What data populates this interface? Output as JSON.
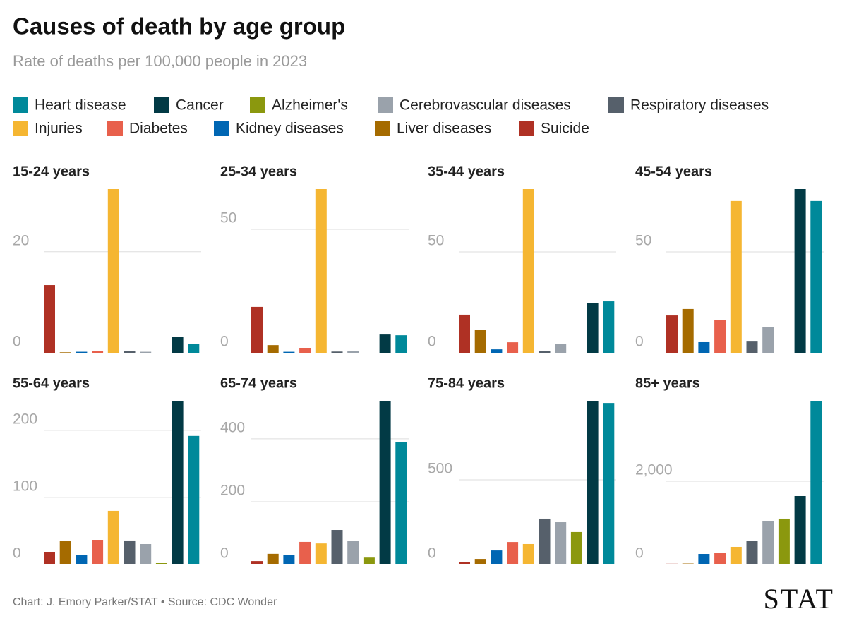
{
  "header": {
    "title": "Causes of death by age group",
    "subtitle": "Rate of deaths per 100,000 people in 2023"
  },
  "footer": {
    "credit": "Chart: J. Emory Parker/STAT • Source: CDC Wonder",
    "logo": "STAT"
  },
  "chart_data": [
    {
      "type": "bar",
      "title": "15-24 years",
      "ylim": [
        0,
        32.4
      ],
      "yticks": [
        0,
        20
      ],
      "grid": true,
      "series": [
        {
          "name": "Heart disease",
          "color": "#00899a",
          "values": [
            1.8
          ]
        },
        {
          "name": "Cancer",
          "color": "#023a45",
          "values": [
            3.2
          ]
        },
        {
          "name": "Alzheimer's",
          "color": "#8b980e",
          "values": [
            0
          ]
        },
        {
          "name": "Cerebrovascular diseases",
          "color": "#9aa2ab",
          "values": [
            0.2
          ]
        },
        {
          "name": "Respiratory diseases",
          "color": "#56606b",
          "values": [
            0.3
          ]
        },
        {
          "name": "Injuries",
          "color": "#f5b632",
          "values": [
            32.4
          ]
        },
        {
          "name": "Diabetes",
          "color": "#e8604c",
          "values": [
            0.4
          ]
        },
        {
          "name": "Kidney diseases",
          "color": "#0066b3",
          "values": [
            0.2
          ]
        },
        {
          "name": "Liver diseases",
          "color": "#a56b00",
          "values": [
            0.1
          ]
        },
        {
          "name": "Suicide",
          "color": "#af3124",
          "values": [
            13.4
          ]
        }
      ]
    },
    {
      "type": "bar",
      "title": "25-34 years",
      "ylim": [
        0,
        66.3
      ],
      "yticks": [
        0,
        50
      ],
      "grid": true,
      "series": [
        {
          "name": "Heart disease",
          "color": "#00899a",
          "values": [
            7.1
          ]
        },
        {
          "name": "Cancer",
          "color": "#023a45",
          "values": [
            7.4
          ]
        },
        {
          "name": "Alzheimer's",
          "color": "#8b980e",
          "values": [
            0
          ]
        },
        {
          "name": "Cerebrovascular diseases",
          "color": "#9aa2ab",
          "values": [
            0.7
          ]
        },
        {
          "name": "Respiratory diseases",
          "color": "#56606b",
          "values": [
            0.5
          ]
        },
        {
          "name": "Injuries",
          "color": "#f5b632",
          "values": [
            66.3
          ]
        },
        {
          "name": "Diabetes",
          "color": "#e8604c",
          "values": [
            2.0
          ]
        },
        {
          "name": "Kidney diseases",
          "color": "#0066b3",
          "values": [
            0.4
          ]
        },
        {
          "name": "Liver diseases",
          "color": "#a56b00",
          "values": [
            3.1
          ]
        },
        {
          "name": "Suicide",
          "color": "#af3124",
          "values": [
            18.6
          ]
        }
      ]
    },
    {
      "type": "bar",
      "title": "35-44 years",
      "ylim": [
        0,
        81.1
      ],
      "yticks": [
        0,
        50
      ],
      "grid": true,
      "series": [
        {
          "name": "Heart disease",
          "color": "#00899a",
          "values": [
            25.5
          ]
        },
        {
          "name": "Cancer",
          "color": "#023a45",
          "values": [
            24.8
          ]
        },
        {
          "name": "Alzheimer's",
          "color": "#8b980e",
          "values": [
            0
          ]
        },
        {
          "name": "Cerebrovascular diseases",
          "color": "#9aa2ab",
          "values": [
            4.2
          ]
        },
        {
          "name": "Respiratory diseases",
          "color": "#56606b",
          "values": [
            1.0
          ]
        },
        {
          "name": "Injuries",
          "color": "#f5b632",
          "values": [
            81.1
          ]
        },
        {
          "name": "Diabetes",
          "color": "#e8604c",
          "values": [
            5.2
          ]
        },
        {
          "name": "Kidney diseases",
          "color": "#0066b3",
          "values": [
            1.7
          ]
        },
        {
          "name": "Liver diseases",
          "color": "#a56b00",
          "values": [
            11.2
          ]
        },
        {
          "name": "Suicide",
          "color": "#af3124",
          "values": [
            18.9
          ]
        }
      ]
    },
    {
      "type": "bar",
      "title": "45-54 years",
      "ylim": [
        0,
        81.1
      ],
      "yticks": [
        0,
        50
      ],
      "grid": true,
      "series": [
        {
          "name": "Heart disease",
          "color": "#00899a",
          "values": [
            75.2
          ]
        },
        {
          "name": "Cancer",
          "color": "#023a45",
          "values": [
            81.1
          ]
        },
        {
          "name": "Alzheimer's",
          "color": "#8b980e",
          "values": [
            0
          ]
        },
        {
          "name": "Cerebrovascular diseases",
          "color": "#9aa2ab",
          "values": [
            12.9
          ]
        },
        {
          "name": "Respiratory diseases",
          "color": "#56606b",
          "values": [
            5.9
          ]
        },
        {
          "name": "Injuries",
          "color": "#f5b632",
          "values": [
            75.2
          ]
        },
        {
          "name": "Diabetes",
          "color": "#e8604c",
          "values": [
            16.1
          ]
        },
        {
          "name": "Kidney diseases",
          "color": "#0066b3",
          "values": [
            5.6
          ]
        },
        {
          "name": "Liver diseases",
          "color": "#a56b00",
          "values": [
            21.7
          ]
        },
        {
          "name": "Suicide",
          "color": "#af3124",
          "values": [
            18.5
          ]
        }
      ]
    },
    {
      "type": "bar",
      "title": "55-64 years",
      "ylim": [
        0,
        244
      ],
      "yticks": [
        0,
        100,
        200
      ],
      "grid": true,
      "series": [
        {
          "name": "Heart disease",
          "color": "#00899a",
          "values": [
            191.6
          ]
        },
        {
          "name": "Cancer",
          "color": "#023a45",
          "values": [
            244
          ]
        },
        {
          "name": "Alzheimer's",
          "color": "#8b980e",
          "values": [
            2.1
          ]
        },
        {
          "name": "Cerebrovascular diseases",
          "color": "#9aa2ab",
          "values": [
            30.5
          ]
        },
        {
          "name": "Respiratory diseases",
          "color": "#56606b",
          "values": [
            35.8
          ]
        },
        {
          "name": "Injuries",
          "color": "#f5b632",
          "values": [
            80
          ]
        },
        {
          "name": "Diabetes",
          "color": "#e8604c",
          "values": [
            36.8
          ]
        },
        {
          "name": "Kidney diseases",
          "color": "#0066b3",
          "values": [
            13.7
          ]
        },
        {
          "name": "Liver diseases",
          "color": "#a56b00",
          "values": [
            34.7
          ]
        },
        {
          "name": "Suicide",
          "color": "#af3124",
          "values": [
            17.9
          ]
        }
      ]
    },
    {
      "type": "bar",
      "title": "65-74 years",
      "ylim": [
        0,
        521
      ],
      "yticks": [
        0,
        200,
        400
      ],
      "grid": true,
      "series": [
        {
          "name": "Heart disease",
          "color": "#00899a",
          "values": [
            389
          ]
        },
        {
          "name": "Cancer",
          "color": "#023a45",
          "values": [
            521
          ]
        },
        {
          "name": "Alzheimer's",
          "color": "#8b980e",
          "values": [
            22
          ]
        },
        {
          "name": "Cerebrovascular diseases",
          "color": "#9aa2ab",
          "values": [
            76
          ]
        },
        {
          "name": "Respiratory diseases",
          "color": "#56606b",
          "values": [
            110
          ]
        },
        {
          "name": "Injuries",
          "color": "#f5b632",
          "values": [
            67
          ]
        },
        {
          "name": "Diabetes",
          "color": "#e8604c",
          "values": [
            72
          ]
        },
        {
          "name": "Kidney diseases",
          "color": "#0066b3",
          "values": [
            31
          ]
        },
        {
          "name": "Liver diseases",
          "color": "#a56b00",
          "values": [
            34
          ]
        },
        {
          "name": "Suicide",
          "color": "#af3124",
          "values": [
            11
          ]
        }
      ]
    },
    {
      "type": "bar",
      "title": "75-84 years",
      "ylim": [
        0,
        967
      ],
      "yticks": [
        0,
        500
      ],
      "grid": true,
      "series": [
        {
          "name": "Heart disease",
          "color": "#00899a",
          "values": [
            954
          ]
        },
        {
          "name": "Cancer",
          "color": "#023a45",
          "values": [
            967
          ]
        },
        {
          "name": "Alzheimer's",
          "color": "#8b980e",
          "values": [
            192
          ]
        },
        {
          "name": "Cerebrovascular diseases",
          "color": "#9aa2ab",
          "values": [
            250
          ]
        },
        {
          "name": "Respiratory diseases",
          "color": "#56606b",
          "values": [
            271
          ]
        },
        {
          "name": "Injuries",
          "color": "#f5b632",
          "values": [
            121
          ]
        },
        {
          "name": "Diabetes",
          "color": "#e8604c",
          "values": [
            133
          ]
        },
        {
          "name": "Kidney diseases",
          "color": "#0066b3",
          "values": [
            83
          ]
        },
        {
          "name": "Liver diseases",
          "color": "#a56b00",
          "values": [
            33
          ]
        },
        {
          "name": "Suicide",
          "color": "#af3124",
          "values": [
            12.5
          ]
        }
      ]
    },
    {
      "type": "bar",
      "title": "85+ years",
      "ylim": [
        0,
        3932
      ],
      "yticks": [
        0,
        {
          "value": 2000,
          "label": "2,000"
        }
      ],
      "grid": true,
      "series": [
        {
          "name": "Heart disease",
          "color": "#00899a",
          "values": [
            3932
          ]
        },
        {
          "name": "Cancer",
          "color": "#023a45",
          "values": [
            1644
          ]
        },
        {
          "name": "Alzheimer's",
          "color": "#8b980e",
          "values": [
            1102
          ]
        },
        {
          "name": "Cerebrovascular diseases",
          "color": "#9aa2ab",
          "values": [
            1051
          ]
        },
        {
          "name": "Respiratory diseases",
          "color": "#56606b",
          "values": [
            576
          ]
        },
        {
          "name": "Injuries",
          "color": "#f5b632",
          "values": [
            424
          ]
        },
        {
          "name": "Diabetes",
          "color": "#e8604c",
          "values": [
            271
          ]
        },
        {
          "name": "Kidney diseases",
          "color": "#0066b3",
          "values": [
            254
          ]
        },
        {
          "name": "Liver diseases",
          "color": "#a56b00",
          "values": [
            25
          ]
        },
        {
          "name": "Suicide",
          "color": "#af3124",
          "values": [
            20
          ]
        }
      ]
    }
  ]
}
